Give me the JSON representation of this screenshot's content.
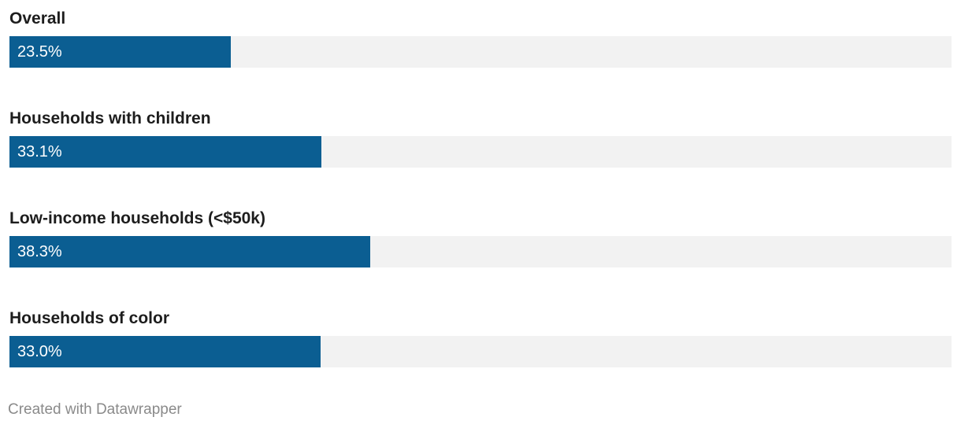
{
  "chart_data": {
    "type": "bar",
    "orientation": "horizontal",
    "categories": [
      "Overall",
      "Households with children",
      "Low-income households (<$50k)",
      "Households of color"
    ],
    "values": [
      23.5,
      33.1,
      38.3,
      33.0
    ],
    "value_labels": [
      "23.5%",
      "33.1%",
      "38.3%",
      "33.0%"
    ],
    "xlim": [
      0,
      100
    ],
    "unit": "%",
    "grid": false,
    "legend": "none",
    "title": "",
    "xlabel": "",
    "ylabel": ""
  },
  "colors": {
    "bar": "#0b5e92",
    "track": "#f2f2f2",
    "label": "#1d1d1d",
    "value_text": "#ffffff",
    "credit": "#8a8a8a"
  },
  "footer": {
    "credit": "Created with Datawrapper"
  }
}
